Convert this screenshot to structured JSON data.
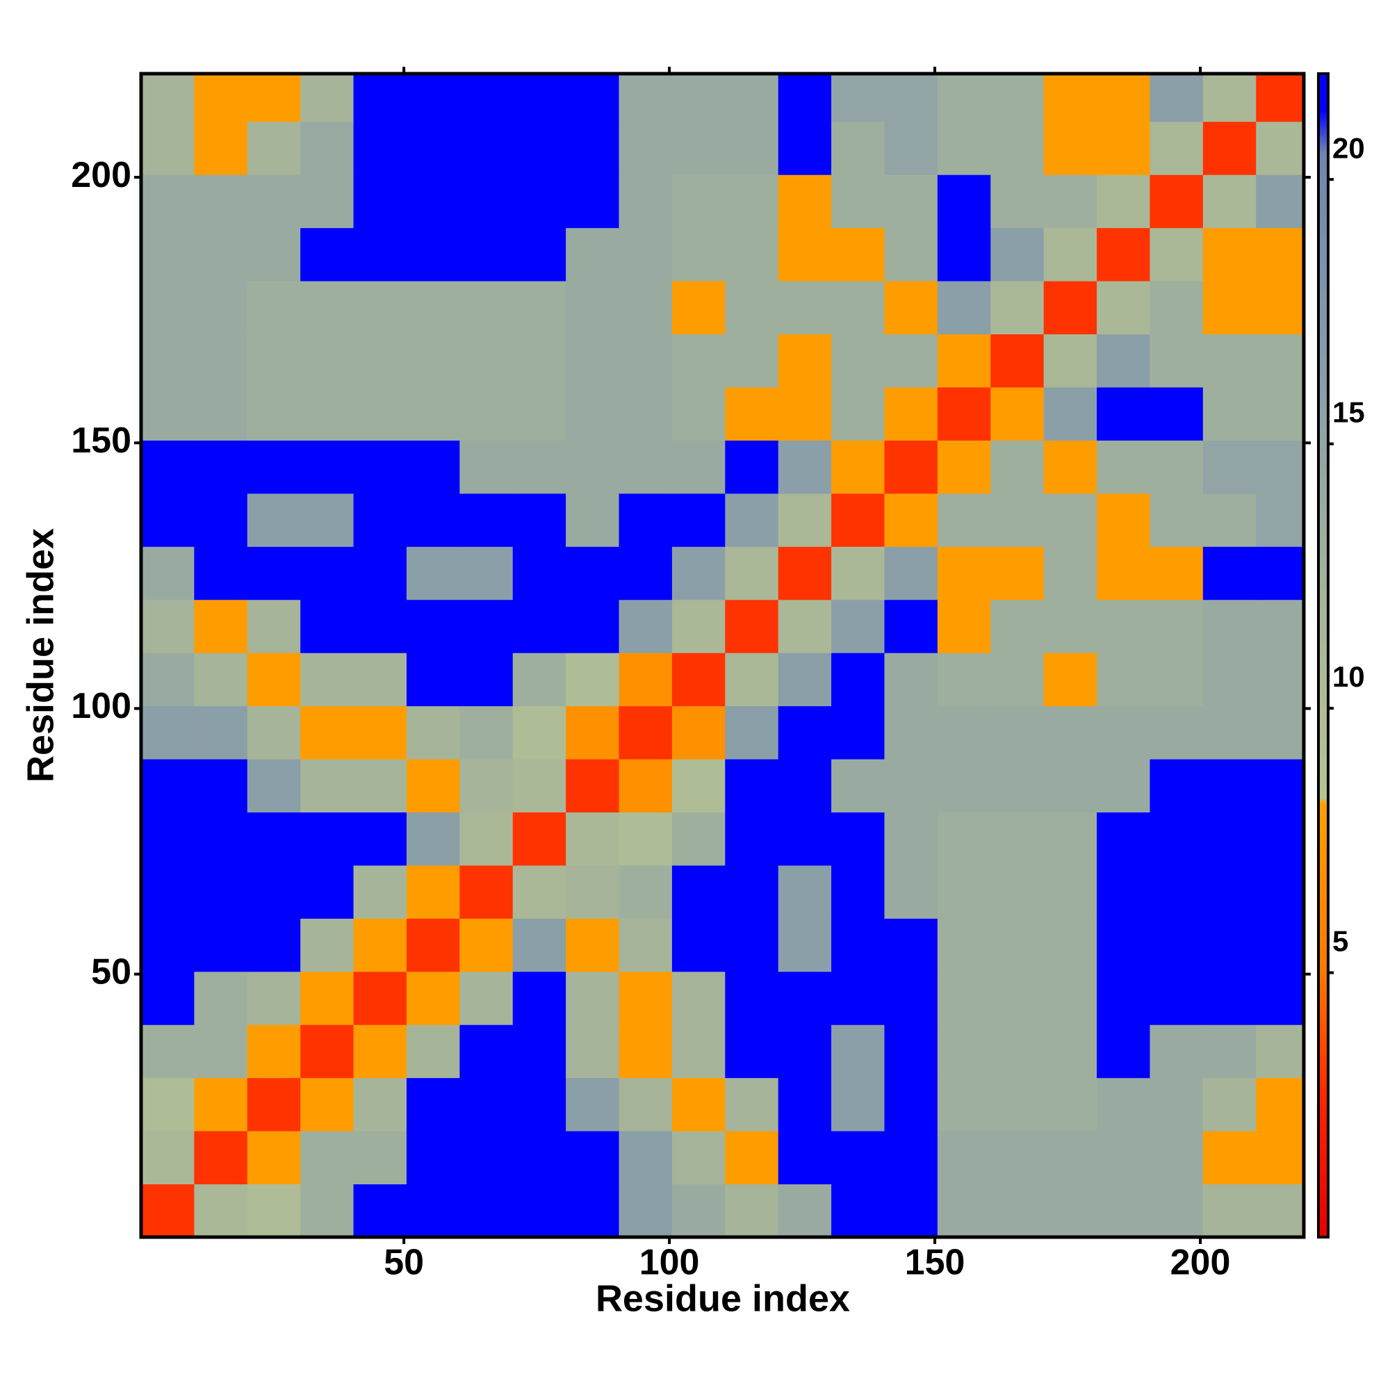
{
  "chart_data": {
    "type": "heatmap",
    "xlabel": "Residue index",
    "ylabel": "Residue index",
    "xlim": [
      0.5,
      219.5
    ],
    "ylim": [
      0.5,
      219.5
    ],
    "xticks": [
      50,
      100,
      150,
      200
    ],
    "yticks": [
      50,
      100,
      150,
      200
    ],
    "xbins": [
      0.5,
      10.5,
      20.5,
      30.5,
      40.5,
      50.5,
      60.5,
      70.5,
      80.5,
      90.5,
      100.5,
      110.5,
      120.5,
      130.5,
      140.5,
      150.5,
      160.5,
      170.5,
      180.5,
      190.5,
      200.5,
      210.5,
      220.5
    ],
    "ybins": [
      0.5,
      10.5,
      20.5,
      30.5,
      40.5,
      50.5,
      60.5,
      70.5,
      80.5,
      90.5,
      100.5,
      110.5,
      120.5,
      130.5,
      140.5,
      150.5,
      160.5,
      170.5,
      180.5,
      190.5,
      200.5,
      210.5,
      220.5
    ],
    "z": [
      [
        3,
        11,
        10,
        13,
        22,
        22,
        22,
        22,
        22,
        16,
        14,
        12,
        14,
        22,
        22,
        14,
        14,
        14,
        14,
        14,
        12,
        12
      ],
      [
        11,
        3,
        8,
        13,
        13,
        22,
        22,
        22,
        22,
        16,
        12,
        8,
        22,
        22,
        22,
        14,
        14,
        14,
        14,
        14,
        8,
        8
      ],
      [
        10,
        8,
        3,
        8,
        12,
        22,
        22,
        22,
        16,
        12,
        8,
        12,
        22,
        16,
        22,
        13,
        13,
        13,
        14,
        14,
        12,
        8
      ],
      [
        13,
        13,
        8,
        3,
        8,
        12,
        22,
        22,
        12,
        8,
        12,
        22,
        22,
        16,
        22,
        13,
        13,
        13,
        22,
        14,
        14,
        12
      ],
      [
        22,
        13,
        12,
        8,
        3,
        8,
        12,
        22,
        12,
        8,
        12,
        22,
        22,
        22,
        22,
        13,
        13,
        13,
        22,
        22,
        22,
        22
      ],
      [
        22,
        22,
        22,
        12,
        8,
        3,
        8,
        16,
        8,
        12,
        22,
        22,
        16,
        22,
        22,
        13,
        13,
        13,
        22,
        22,
        22,
        22
      ],
      [
        22,
        22,
        22,
        22,
        12,
        8,
        3,
        11,
        12,
        13,
        22,
        22,
        16,
        22,
        14,
        13,
        13,
        13,
        22,
        22,
        22,
        22
      ],
      [
        22,
        22,
        22,
        22,
        22,
        16,
        11,
        3,
        11,
        10,
        13,
        22,
        22,
        22,
        14,
        13,
        13,
        13,
        22,
        22,
        22,
        22
      ],
      [
        22,
        22,
        16,
        12,
        12,
        8,
        12,
        11,
        3,
        7,
        10,
        22,
        22,
        14,
        14,
        14,
        14,
        14,
        14,
        22,
        22,
        22
      ],
      [
        16,
        16,
        12,
        8,
        8,
        12,
        13,
        10,
        7,
        3,
        7,
        16,
        22,
        22,
        14,
        14,
        14,
        14,
        14,
        14,
        14,
        14
      ],
      [
        14,
        12,
        8,
        12,
        12,
        22,
        22,
        13,
        10,
        7,
        3,
        11,
        16,
        22,
        14,
        13,
        13,
        8,
        13,
        13,
        14,
        14
      ],
      [
        12,
        8,
        12,
        22,
        22,
        22,
        22,
        22,
        22,
        16,
        11,
        3,
        11,
        16,
        22,
        8,
        13,
        13,
        13,
        13,
        14,
        14
      ],
      [
        14,
        22,
        22,
        22,
        22,
        16,
        16,
        22,
        22,
        22,
        16,
        11,
        3,
        11,
        16,
        8,
        8,
        13,
        8,
        8,
        22,
        22
      ],
      [
        22,
        22,
        16,
        16,
        22,
        22,
        22,
        22,
        14,
        22,
        22,
        16,
        11,
        3,
        8,
        13,
        13,
        13,
        8,
        13,
        13,
        15
      ],
      [
        22,
        22,
        22,
        22,
        22,
        22,
        14,
        14,
        14,
        14,
        14,
        22,
        16,
        8,
        3,
        8,
        13,
        8,
        13,
        13,
        15,
        15
      ],
      [
        14,
        14,
        13,
        13,
        13,
        13,
        13,
        13,
        14,
        14,
        13,
        8,
        8,
        13,
        8,
        3,
        8,
        16,
        22,
        22,
        13,
        13
      ],
      [
        14,
        14,
        13,
        13,
        13,
        13,
        13,
        13,
        14,
        14,
        13,
        13,
        8,
        13,
        13,
        8,
        3,
        11,
        16,
        13,
        13,
        13
      ],
      [
        14,
        14,
        13,
        13,
        13,
        13,
        13,
        13,
        14,
        14,
        8,
        13,
        13,
        13,
        8,
        16,
        11,
        3,
        11,
        13,
        8,
        8
      ],
      [
        14,
        14,
        14,
        22,
        22,
        22,
        22,
        22,
        14,
        14,
        13,
        13,
        8,
        8,
        13,
        22,
        16,
        11,
        3,
        11,
        8,
        8
      ],
      [
        14,
        14,
        14,
        14,
        22,
        22,
        22,
        22,
        22,
        14,
        13,
        13,
        8,
        13,
        13,
        22,
        13,
        13,
        11,
        3,
        11,
        16
      ],
      [
        12,
        8,
        12,
        14,
        22,
        22,
        22,
        22,
        22,
        14,
        14,
        14,
        22,
        13,
        15,
        13,
        13,
        8,
        8,
        11,
        3,
        11
      ],
      [
        12,
        8,
        8,
        12,
        22,
        22,
        22,
        22,
        22,
        14,
        14,
        14,
        22,
        15,
        15,
        13,
        13,
        8,
        8,
        16,
        11,
        3
      ]
    ],
    "clim": [
      0,
      22
    ],
    "cticks": [
      5,
      10,
      15,
      20
    ],
    "colorscale": [
      [
        0,
        "#e60000"
      ],
      [
        2.5,
        "#ff2200"
      ],
      [
        5,
        "#ff7700"
      ],
      [
        8.2,
        "#ffa000"
      ],
      [
        8.3,
        "#b4c490"
      ],
      [
        12,
        "#a6b49a"
      ],
      [
        16,
        "#8b9fa8"
      ],
      [
        20.5,
        "#6f86b0"
      ],
      [
        21.3,
        "#0000ff"
      ],
      [
        22,
        "#0000ff"
      ]
    ]
  }
}
